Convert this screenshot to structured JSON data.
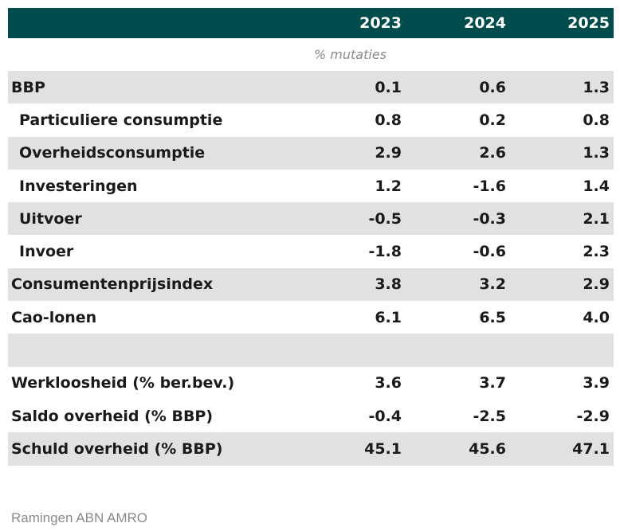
{
  "header": {
    "years": [
      "2023",
      "2024",
      "2025"
    ]
  },
  "note": "% mutaties",
  "rows": [
    {
      "label": "BBP",
      "values": [
        "0.1",
        "0.6",
        "1.3"
      ]
    },
    {
      "label": "Particuliere consumptie",
      "values": [
        "0.8",
        "0.2",
        "0.8"
      ]
    },
    {
      "label": "Overheidsconsumptie",
      "values": [
        "2.9",
        "2.6",
        "1.3"
      ]
    },
    {
      "label": "Investeringen",
      "values": [
        "1.2",
        "-1.6",
        "1.4"
      ]
    },
    {
      "label": "Uitvoer",
      "values": [
        "-0.5",
        "-0.3",
        "2.1"
      ]
    },
    {
      "label": "Invoer",
      "values": [
        "-1.8",
        "-0.6",
        "2.3"
      ]
    },
    {
      "label": "Consumentenprijsindex",
      "values": [
        "3.8",
        "3.2",
        "2.9"
      ]
    },
    {
      "label": "Cao-lonen",
      "values": [
        "6.1",
        "6.5",
        "4.0"
      ]
    },
    {
      "label": "",
      "values": [
        "",
        "",
        ""
      ]
    },
    {
      "label": "Werkloosheid (% ber.bev.)",
      "values": [
        "3.6",
        "3.7",
        "3.9"
      ]
    },
    {
      "label": "Saldo overheid (% BBP)",
      "values": [
        "-0.4",
        "-2.5",
        "-2.9"
      ]
    },
    {
      "label": "Schuld overheid (% BBP)",
      "values": [
        "45.1",
        "45.6",
        "47.1"
      ]
    }
  ],
  "source": "Ramingen ABN AMRO",
  "colors": {
    "header_bg": "#004c4c",
    "row_shade": "#e1e1e1"
  }
}
